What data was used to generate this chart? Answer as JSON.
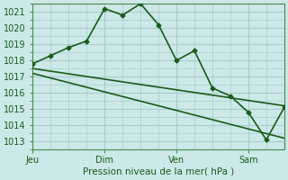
{
  "background_color": "#cce8e8",
  "grid_color": "#aacccc",
  "line_color": "#1a5c1a",
  "title": "Pression niveau de la mer( hPa )",
  "ylabel_ticks": [
    1013,
    1014,
    1015,
    1016,
    1017,
    1018,
    1019,
    1020,
    1021
  ],
  "ylim": [
    1012.5,
    1021.5
  ],
  "xlim": [
    0,
    84
  ],
  "xtick_positions": [
    0,
    24,
    48,
    72
  ],
  "xtick_labels": [
    "Jeu",
    "Dim",
    "Ven",
    "Sam"
  ],
  "series1_x": [
    0,
    6,
    12,
    18,
    24,
    30,
    36,
    42,
    48,
    54,
    60,
    66,
    72,
    78,
    84
  ],
  "series1_y": [
    1017.8,
    1018.3,
    1018.8,
    1019.2,
    1021.2,
    1020.8,
    1021.5,
    1020.2,
    1018.0,
    1018.6,
    1016.3,
    1015.8,
    1014.8,
    1013.1,
    1015.1
  ],
  "series2_x": [
    0,
    84
  ],
  "series2_y": [
    1017.5,
    1015.2
  ],
  "series3_x": [
    0,
    84
  ],
  "series3_y": [
    1017.2,
    1013.2
  ]
}
